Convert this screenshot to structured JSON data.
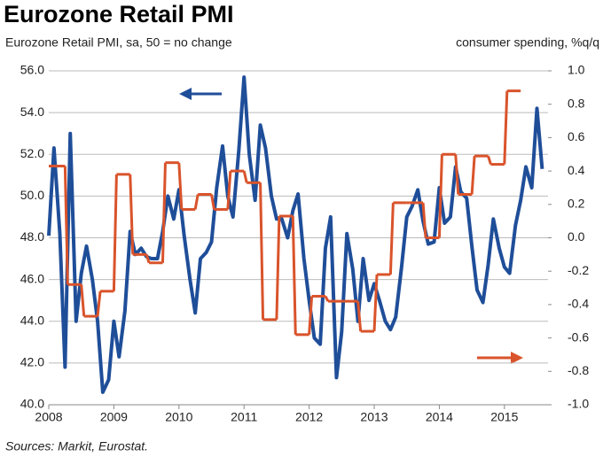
{
  "chart_data": {
    "type": "line",
    "title": "Eurozone Retail PMI",
    "subtitle": "Eurozone Retail PMI, sa, 50 = no change",
    "y2_label": "consumer spending, %q/q",
    "source": "Sources: Markit, Eurostat.",
    "xlim": [
      2008,
      2015.67
    ],
    "xticks": [
      2008,
      2009,
      2010,
      2011,
      2012,
      2013,
      2014,
      2015
    ],
    "ylim": [
      40,
      56
    ],
    "yticks": [
      {
        "value": 40,
        "label": "40.0"
      },
      {
        "value": 42,
        "label": "42.0"
      },
      {
        "value": 44,
        "label": "44.0"
      },
      {
        "value": 46,
        "label": "46.0"
      },
      {
        "value": 48,
        "label": "48.0"
      },
      {
        "value": 50,
        "label": "50.0"
      },
      {
        "value": 52,
        "label": "52.0"
      },
      {
        "value": 54,
        "label": "54.0"
      },
      {
        "value": 56,
        "label": "56.0"
      }
    ],
    "y2lim": [
      -1,
      1
    ],
    "y2ticks": [
      {
        "value": -1,
        "label": "-1.0"
      },
      -0.8,
      -0.6,
      -0.4,
      -0.2,
      {
        "value": 0,
        "label": "0.0"
      },
      0.2,
      0.4,
      0.6,
      0.8,
      {
        "value": 1,
        "label": "1.0"
      }
    ],
    "grid": true,
    "series": [
      {
        "color": "#1f4e99",
        "axis": "y",
        "x": [
          2008.0,
          2008.08,
          2008.17,
          2008.25,
          2008.33,
          2008.42,
          2008.5,
          2008.58,
          2008.67,
          2008.75,
          2008.83,
          2008.92,
          2009.0,
          2009.08,
          2009.17,
          2009.25,
          2009.33,
          2009.42,
          2009.5,
          2009.58,
          2009.67,
          2009.75,
          2009.83,
          2009.92,
          2010.0,
          2010.08,
          2010.17,
          2010.25,
          2010.33,
          2010.42,
          2010.5,
          2010.58,
          2010.67,
          2010.75,
          2010.83,
          2010.92,
          2011.0,
          2011.08,
          2011.17,
          2011.25,
          2011.33,
          2011.42,
          2011.5,
          2011.58,
          2011.67,
          2011.75,
          2011.83,
          2011.92,
          2012.0,
          2012.08,
          2012.17,
          2012.25,
          2012.33,
          2012.42,
          2012.5,
          2012.58,
          2012.67,
          2012.75,
          2012.83,
          2012.92,
          2013.0,
          2013.08,
          2013.17,
          2013.25,
          2013.33,
          2013.42,
          2013.5,
          2013.58,
          2013.67,
          2013.75,
          2013.83,
          2013.92,
          2014.0,
          2014.08,
          2014.17,
          2014.25,
          2014.33,
          2014.42,
          2014.5,
          2014.58,
          2014.67,
          2014.75,
          2014.83,
          2014.92,
          2015.0,
          2015.08,
          2015.17,
          2015.25,
          2015.33,
          2015.42,
          2015.5,
          2015.58
        ],
        "values": [
          48.1,
          52.3,
          48.2,
          41.8,
          53.0,
          44.0,
          46.3,
          47.6,
          46.0,
          44.0,
          40.6,
          41.2,
          44.0,
          42.3,
          44.5,
          48.3,
          47.2,
          47.5,
          47.1,
          47.0,
          47.0,
          48.3,
          50.0,
          48.9,
          50.3,
          48.1,
          46.0,
          44.4,
          47.0,
          47.3,
          47.8,
          50.4,
          52.4,
          50.0,
          49.0,
          52.2,
          55.7,
          52.0,
          49.8,
          53.4,
          52.3,
          50.0,
          48.9,
          48.9,
          48.0,
          49.3,
          50.1,
          47.0,
          45.0,
          43.2,
          42.9,
          47.5,
          49.0,
          41.3,
          43.5,
          48.2,
          46.5,
          44.0,
          47.0,
          45.0,
          45.8,
          45.0,
          44.0,
          43.6,
          44.2,
          46.6,
          49.0,
          49.5,
          50.3,
          48.8,
          47.7,
          47.8,
          50.4,
          48.7,
          49.0,
          51.4,
          50.2,
          49.9,
          47.6,
          45.5,
          44.9,
          46.7,
          48.9,
          47.5,
          46.6,
          46.3,
          48.6,
          49.8,
          51.4,
          50.4,
          54.2,
          51.3
        ]
      },
      {
        "color": "#d9532b",
        "axis": "y2",
        "step": true,
        "x": [
          2008,
          2008.25,
          2008.5,
          2008.75,
          2009,
          2009.25,
          2009.5,
          2009.75,
          2010,
          2010.25,
          2010.5,
          2010.75,
          2011,
          2011.25,
          2011.5,
          2011.75,
          2012,
          2012.25,
          2012.5,
          2012.75,
          2013,
          2013.25,
          2013.5,
          2013.75,
          2014,
          2014.25,
          2014.5,
          2014.75,
          2015
        ],
        "values": [
          0.43,
          -0.28,
          -0.47,
          -0.32,
          0.38,
          -0.1,
          -0.15,
          0.45,
          0.17,
          0.26,
          0.17,
          0.4,
          0.33,
          -0.49,
          0.13,
          -0.58,
          -0.35,
          -0.38,
          -0.38,
          -0.56,
          -0.22,
          0.21,
          0.21,
          0.0,
          0.5,
          0.26,
          0.49,
          0.44,
          0.88
        ]
      }
    ]
  }
}
